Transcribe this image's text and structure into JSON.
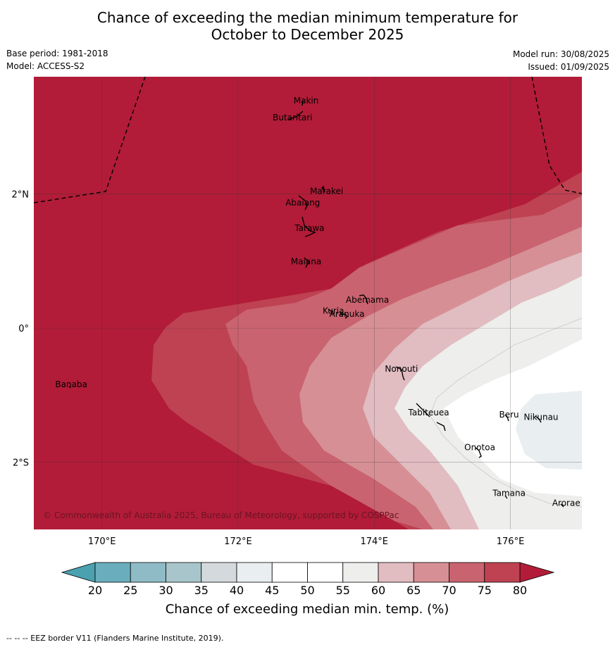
{
  "title": {
    "line1": "Chance of exceeding the median minimum temperature for",
    "line2": "October to December 2025"
  },
  "meta": {
    "base_period": "Base period: 1981-2018",
    "model": "Model: ACCESS-S2",
    "model_run": "Model run: 30/08/2025",
    "issued": "Issued: 01/09/2025"
  },
  "map": {
    "lon_range": [
      169.0,
      177.05
    ],
    "lat_range": [
      -3.0,
      3.75
    ],
    "x_ticks": [
      {
        "value": 170,
        "label": "170°E"
      },
      {
        "value": 172,
        "label": "172°E"
      },
      {
        "value": 174,
        "label": "174°E"
      },
      {
        "value": 176,
        "label": "176°E"
      }
    ],
    "y_ticks": [
      {
        "value": 2,
        "label": "2°N"
      },
      {
        "value": 0,
        "label": "0°"
      },
      {
        "value": -2,
        "label": "2°S"
      }
    ],
    "places": [
      {
        "name": "Makin",
        "lon": 173.0,
        "lat": 3.35
      },
      {
        "name": "Butaritari",
        "lon": 172.8,
        "lat": 3.1
      },
      {
        "name": "Marakei",
        "lon": 173.3,
        "lat": 2.0
      },
      {
        "name": "Abaiang",
        "lon": 172.95,
        "lat": 1.83
      },
      {
        "name": "Tarawa",
        "lon": 173.05,
        "lat": 1.45
      },
      {
        "name": "Maiana",
        "lon": 173.0,
        "lat": 0.95
      },
      {
        "name": "Abemama",
        "lon": 173.9,
        "lat": 0.38
      },
      {
        "name": "Kuria",
        "lon": 173.4,
        "lat": 0.22
      },
      {
        "name": "Aranuka",
        "lon": 173.6,
        "lat": 0.17
      },
      {
        "name": "Banaba",
        "lon": 169.55,
        "lat": -0.88
      },
      {
        "name": "Nonouti",
        "lon": 174.4,
        "lat": -0.65
      },
      {
        "name": "Tabiteuea",
        "lon": 174.8,
        "lat": -1.3
      },
      {
        "name": "Beru",
        "lon": 175.98,
        "lat": -1.33
      },
      {
        "name": "Nikunau",
        "lon": 176.45,
        "lat": -1.37
      },
      {
        "name": "Onotoa",
        "lon": 175.55,
        "lat": -1.82
      },
      {
        "name": "Tamana",
        "lon": 175.98,
        "lat": -2.5
      },
      {
        "name": "Arorae",
        "lon": 176.82,
        "lat": -2.65
      }
    ],
    "copyright": "© Commonwealth of Australia 2025, Bureau of Meteorology, supported by COSPPac"
  },
  "colorbar": {
    "ticks": [
      "20",
      "25",
      "30",
      "35",
      "40",
      "45",
      "50",
      "55",
      "60",
      "65",
      "70",
      "75",
      "80"
    ],
    "colors": [
      "#6aaebe",
      "#8fbbc6",
      "#a8c5cb",
      "#d3d9dc",
      "#e9eef0",
      "#ffffff",
      "#ffffff",
      "#eeeeec",
      "#e1bcc1",
      "#d68f95",
      "#c9636f",
      "#be4252"
    ],
    "under_color": "#4aa1b0",
    "over_color": "#b21c38",
    "title": "Chance of exceeding median min. temp. (%)"
  },
  "legend_note": "--  --  -- EEZ border V11 (Flanders Marine Institute, 2019)."
}
